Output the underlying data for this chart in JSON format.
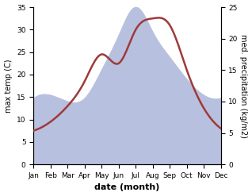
{
  "months": [
    "Jan",
    "Feb",
    "Mar",
    "Apr",
    "May",
    "Jun",
    "Jul",
    "Aug",
    "Sep",
    "Oct",
    "Nov",
    "Dec"
  ],
  "temp": [
    7.5,
    9.5,
    13.0,
    18.5,
    24.5,
    22.5,
    30.0,
    32.5,
    31.0,
    21.0,
    12.5,
    8.0
  ],
  "precip": [
    10.5,
    11.0,
    10.0,
    10.5,
    15.0,
    20.5,
    25.0,
    21.0,
    17.0,
    13.5,
    11.0,
    10.5
  ],
  "temp_color": "#9e3a3a",
  "precip_fill_color": "#b8c0e0",
  "ylim_temp": [
    0,
    35
  ],
  "ylim_precip": [
    0,
    25
  ],
  "ylabel_left": "max temp (C)",
  "ylabel_right": "med. precipitation (kg/m2)",
  "xlabel": "date (month)",
  "bg_color": "#ffffff",
  "yticks_left": [
    0,
    5,
    10,
    15,
    20,
    25,
    30,
    35
  ],
  "yticks_right": [
    0,
    5,
    10,
    15,
    20,
    25
  ],
  "title_fontsize": 7,
  "label_fontsize": 7,
  "xlabel_fontsize": 8,
  "tick_fontsize": 6.5
}
